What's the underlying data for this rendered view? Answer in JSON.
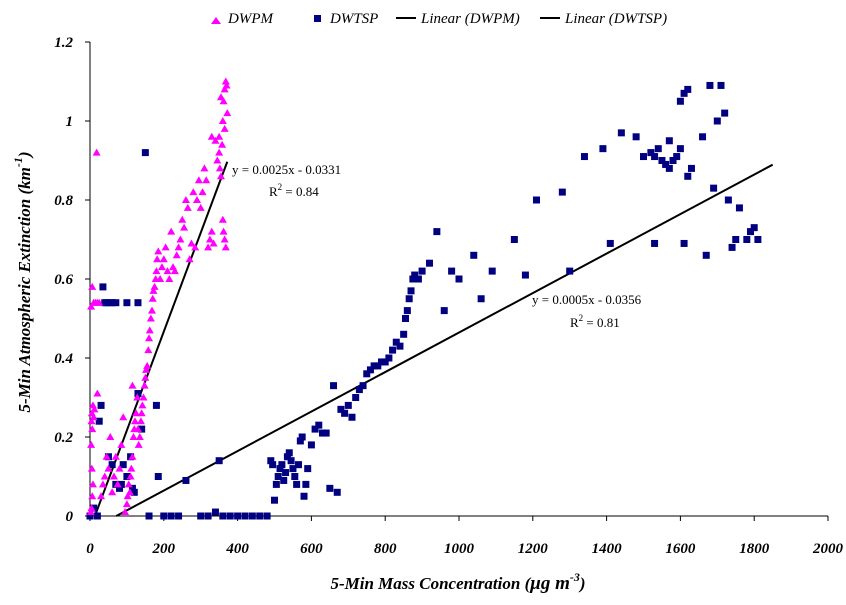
{
  "chart_data": {
    "type": "scatter",
    "title": "",
    "xlabel": "5-Min Mass Concentration (",
    "xlabel_unit": "μg m",
    "xlabel_exp": "-3",
    "xlabel_close": ")",
    "ylabel": "5-Min Atmospheric Extinction (km",
    "ylabel_exp": "-1",
    "ylabel_close": ")",
    "xlim": [
      0,
      2000
    ],
    "ylim": [
      0,
      1.2
    ],
    "x_ticks": [
      "0",
      "200",
      "400",
      "600",
      "800",
      "1000",
      "1200",
      "1400",
      "1600",
      "1800",
      "2000"
    ],
    "y_ticks": [
      "0",
      "0.2",
      "0.4",
      "0.6",
      "0.8",
      "1",
      "1.2"
    ],
    "grid": false,
    "legend_position": "top",
    "colors": {
      "DWPM": "#ff00ff",
      "DWTSP": "#000080",
      "trend": "#000000"
    },
    "legend": [
      {
        "label": "DWPM",
        "marker": "triangle",
        "color": "#ff00ff"
      },
      {
        "label": "DWTSP",
        "marker": "square",
        "color": "#000080"
      },
      {
        "label": "Linear (DWPM)",
        "marker": "line",
        "color": "#000000"
      },
      {
        "label": "Linear (DWTSP)",
        "marker": "line",
        "color": "#000000"
      }
    ],
    "series": [
      {
        "name": "DWPM",
        "marker": "triangle",
        "points": [
          [
            2,
            0.01
          ],
          [
            4,
            0.02
          ],
          [
            6,
            0.05
          ],
          [
            8,
            0.08
          ],
          [
            5,
            0.12
          ],
          [
            3,
            0.18
          ],
          [
            6,
            0.22
          ],
          [
            5,
            0.26
          ],
          [
            8,
            0.28
          ],
          [
            4,
            0.24
          ],
          [
            10,
            0.25
          ],
          [
            12,
            0.27
          ],
          [
            20,
            0.31
          ],
          [
            3,
            0.53
          ],
          [
            6,
            0.58
          ],
          [
            10,
            0.54
          ],
          [
            15,
            0.54
          ],
          [
            20,
            0.54
          ],
          [
            25,
            0.54
          ],
          [
            18,
            0.92
          ],
          [
            30,
            0.05
          ],
          [
            35,
            0.08
          ],
          [
            40,
            0.1
          ],
          [
            45,
            0.15
          ],
          [
            50,
            0.12
          ],
          [
            55,
            0.2
          ],
          [
            60,
            0.06
          ],
          [
            65,
            0.1
          ],
          [
            70,
            0.15
          ],
          [
            75,
            0.08
          ],
          [
            80,
            0.12
          ],
          [
            85,
            0.18
          ],
          [
            90,
            0.25
          ],
          [
            95,
            0.01
          ],
          [
            100,
            0.03
          ],
          [
            102,
            0.05
          ],
          [
            105,
            0.08
          ],
          [
            108,
            0.06
          ],
          [
            110,
            0.1
          ],
          [
            112,
            0.12
          ],
          [
            115,
            0.15
          ],
          [
            118,
            0.2
          ],
          [
            120,
            0.22
          ],
          [
            122,
            0.24
          ],
          [
            125,
            0.26
          ],
          [
            115,
            0.33
          ],
          [
            128,
            0.3
          ],
          [
            130,
            0.22
          ],
          [
            132,
            0.18
          ],
          [
            135,
            0.2
          ],
          [
            138,
            0.24
          ],
          [
            140,
            0.26
          ],
          [
            142,
            0.28
          ],
          [
            145,
            0.3
          ],
          [
            148,
            0.33
          ],
          [
            150,
            0.35
          ],
          [
            152,
            0.37
          ],
          [
            155,
            0.38
          ],
          [
            158,
            0.42
          ],
          [
            160,
            0.45
          ],
          [
            162,
            0.47
          ],
          [
            165,
            0.5
          ],
          [
            168,
            0.52
          ],
          [
            170,
            0.55
          ],
          [
            172,
            0.57
          ],
          [
            175,
            0.58
          ],
          [
            178,
            0.6
          ],
          [
            180,
            0.62
          ],
          [
            182,
            0.65
          ],
          [
            185,
            0.67
          ],
          [
            190,
            0.6
          ],
          [
            195,
            0.63
          ],
          [
            200,
            0.65
          ],
          [
            205,
            0.68
          ],
          [
            210,
            0.62
          ],
          [
            215,
            0.6
          ],
          [
            220,
            0.72
          ],
          [
            225,
            0.63
          ],
          [
            230,
            0.62
          ],
          [
            235,
            0.66
          ],
          [
            240,
            0.68
          ],
          [
            245,
            0.7
          ],
          [
            250,
            0.75
          ],
          [
            255,
            0.73
          ],
          [
            260,
            0.8
          ],
          [
            265,
            0.78
          ],
          [
            270,
            0.65
          ],
          [
            275,
            0.69
          ],
          [
            280,
            0.82
          ],
          [
            285,
            0.68
          ],
          [
            290,
            0.8
          ],
          [
            295,
            0.85
          ],
          [
            300,
            0.78
          ],
          [
            305,
            0.82
          ],
          [
            310,
            0.88
          ],
          [
            315,
            0.85
          ],
          [
            320,
            0.68
          ],
          [
            325,
            0.7
          ],
          [
            330,
            0.72
          ],
          [
            335,
            0.69
          ],
          [
            340,
            0.95
          ],
          [
            345,
            0.9
          ],
          [
            350,
            0.92
          ],
          [
            352,
            0.88
          ],
          [
            355,
            0.86
          ],
          [
            358,
            0.94
          ],
          [
            360,
            1.0
          ],
          [
            362,
            1.05
          ],
          [
            365,
            1.08
          ],
          [
            368,
            1.1
          ],
          [
            370,
            1.09
          ],
          [
            372,
            1.02
          ],
          [
            360,
            0.75
          ],
          [
            362,
            0.72
          ],
          [
            365,
            0.7
          ],
          [
            368,
            0.68
          ],
          [
            365,
            0.98
          ],
          [
            355,
            1.06
          ],
          [
            350,
            0.96
          ],
          [
            330,
            0.96
          ]
        ]
      },
      {
        "name": "DWTSP",
        "marker": "square",
        "points": [
          [
            0,
            0.0
          ],
          [
            10,
            0.02
          ],
          [
            20,
            0.0
          ],
          [
            25,
            0.24
          ],
          [
            30,
            0.28
          ],
          [
            35,
            0.58
          ],
          [
            40,
            0.54
          ],
          [
            45,
            0.54
          ],
          [
            55,
            0.54
          ],
          [
            60,
            0.54
          ],
          [
            70,
            0.54
          ],
          [
            100,
            0.54
          ],
          [
            130,
            0.54
          ],
          [
            150,
            0.92
          ],
          [
            50,
            0.15
          ],
          [
            60,
            0.13
          ],
          [
            70,
            0.08
          ],
          [
            80,
            0.07
          ],
          [
            85,
            0.08
          ],
          [
            90,
            0.13
          ],
          [
            100,
            0.1
          ],
          [
            110,
            0.15
          ],
          [
            115,
            0.07
          ],
          [
            120,
            0.06
          ],
          [
            130,
            0.31
          ],
          [
            140,
            0.22
          ],
          [
            160,
            0.0
          ],
          [
            180,
            0.28
          ],
          [
            185,
            0.1
          ],
          [
            200,
            0.0
          ],
          [
            220,
            0.0
          ],
          [
            240,
            0.0
          ],
          [
            260,
            0.09
          ],
          [
            300,
            0.0
          ],
          [
            320,
            0.0
          ],
          [
            340,
            0.01
          ],
          [
            350,
            0.14
          ],
          [
            360,
            0.0
          ],
          [
            380,
            0.0
          ],
          [
            400,
            0.0
          ],
          [
            420,
            0.0
          ],
          [
            440,
            0.0
          ],
          [
            460,
            0.0
          ],
          [
            480,
            0.0
          ],
          [
            490,
            0.14
          ],
          [
            495,
            0.13
          ],
          [
            500,
            0.04
          ],
          [
            505,
            0.08
          ],
          [
            510,
            0.1
          ],
          [
            515,
            0.12
          ],
          [
            520,
            0.13
          ],
          [
            525,
            0.09
          ],
          [
            530,
            0.11
          ],
          [
            535,
            0.15
          ],
          [
            540,
            0.16
          ],
          [
            545,
            0.14
          ],
          [
            550,
            0.12
          ],
          [
            555,
            0.1
          ],
          [
            560,
            0.08
          ],
          [
            565,
            0.13
          ],
          [
            570,
            0.19
          ],
          [
            575,
            0.2
          ],
          [
            580,
            0.05
          ],
          [
            585,
            0.08
          ],
          [
            590,
            0.12
          ],
          [
            600,
            0.18
          ],
          [
            610,
            0.22
          ],
          [
            620,
            0.23
          ],
          [
            630,
            0.21
          ],
          [
            640,
            0.21
          ],
          [
            650,
            0.07
          ],
          [
            660,
            0.33
          ],
          [
            670,
            0.06
          ],
          [
            680,
            0.27
          ],
          [
            690,
            0.26
          ],
          [
            700,
            0.28
          ],
          [
            710,
            0.25
          ],
          [
            720,
            0.3
          ],
          [
            730,
            0.32
          ],
          [
            740,
            0.33
          ],
          [
            750,
            0.36
          ],
          [
            760,
            0.37
          ],
          [
            770,
            0.38
          ],
          [
            780,
            0.38
          ],
          [
            790,
            0.39
          ],
          [
            800,
            0.39
          ],
          [
            810,
            0.4
          ],
          [
            820,
            0.42
          ],
          [
            830,
            0.44
          ],
          [
            840,
            0.43
          ],
          [
            850,
            0.46
          ],
          [
            855,
            0.5
          ],
          [
            860,
            0.52
          ],
          [
            865,
            0.55
          ],
          [
            870,
            0.57
          ],
          [
            875,
            0.6
          ],
          [
            880,
            0.61
          ],
          [
            890,
            0.6
          ],
          [
            900,
            0.62
          ],
          [
            920,
            0.64
          ],
          [
            940,
            0.72
          ],
          [
            960,
            0.52
          ],
          [
            980,
            0.62
          ],
          [
            1000,
            0.6
          ],
          [
            1040,
            0.66
          ],
          [
            1060,
            0.55
          ],
          [
            1090,
            0.62
          ],
          [
            1150,
            0.7
          ],
          [
            1180,
            0.61
          ],
          [
            1210,
            0.8
          ],
          [
            1280,
            0.82
          ],
          [
            1300,
            0.62
          ],
          [
            1340,
            0.91
          ],
          [
            1390,
            0.93
          ],
          [
            1410,
            0.69
          ],
          [
            1440,
            0.97
          ],
          [
            1480,
            0.96
          ],
          [
            1520,
            0.92
          ],
          [
            1530,
            0.91
          ],
          [
            1540,
            0.93
          ],
          [
            1550,
            0.9
          ],
          [
            1560,
            0.89
          ],
          [
            1570,
            0.88
          ],
          [
            1580,
            0.9
          ],
          [
            1590,
            0.91
          ],
          [
            1600,
            1.05
          ],
          [
            1610,
            1.07
          ],
          [
            1620,
            1.08
          ],
          [
            1630,
            0.88
          ],
          [
            1660,
            0.96
          ],
          [
            1680,
            1.09
          ],
          [
            1700,
            1.0
          ],
          [
            1710,
            1.09
          ],
          [
            1720,
            1.02
          ],
          [
            1730,
            0.8
          ],
          [
            1740,
            0.68
          ],
          [
            1750,
            0.7
          ],
          [
            1760,
            0.78
          ],
          [
            1780,
            0.7
          ],
          [
            1790,
            0.72
          ],
          [
            1800,
            0.73
          ],
          [
            1810,
            0.7
          ],
          [
            1670,
            0.66
          ],
          [
            1690,
            0.83
          ],
          [
            1610,
            0.69
          ],
          [
            1530,
            0.69
          ],
          [
            1620,
            0.86
          ],
          [
            1600,
            0.93
          ],
          [
            1570,
            0.95
          ],
          [
            1500,
            0.91
          ]
        ]
      }
    ],
    "trendlines": [
      {
        "name": "Linear (DWPM)",
        "slope": 0.0025,
        "intercept": -0.0331,
        "x_range": [
          13.24,
          372
        ],
        "equation": "y = 0.0025x - 0.0331",
        "r2_label": "R",
        "r2_exp": "2",
        "r2_value": " = 0.84"
      },
      {
        "name": "Linear (DWTSP)",
        "slope": 0.0005,
        "intercept": -0.0356,
        "x_range": [
          71.2,
          1850
        ],
        "equation": "y = 0.0005x - 0.0356",
        "r2_label": "R",
        "r2_exp": "2",
        "r2_value": " = 0.81"
      }
    ]
  }
}
